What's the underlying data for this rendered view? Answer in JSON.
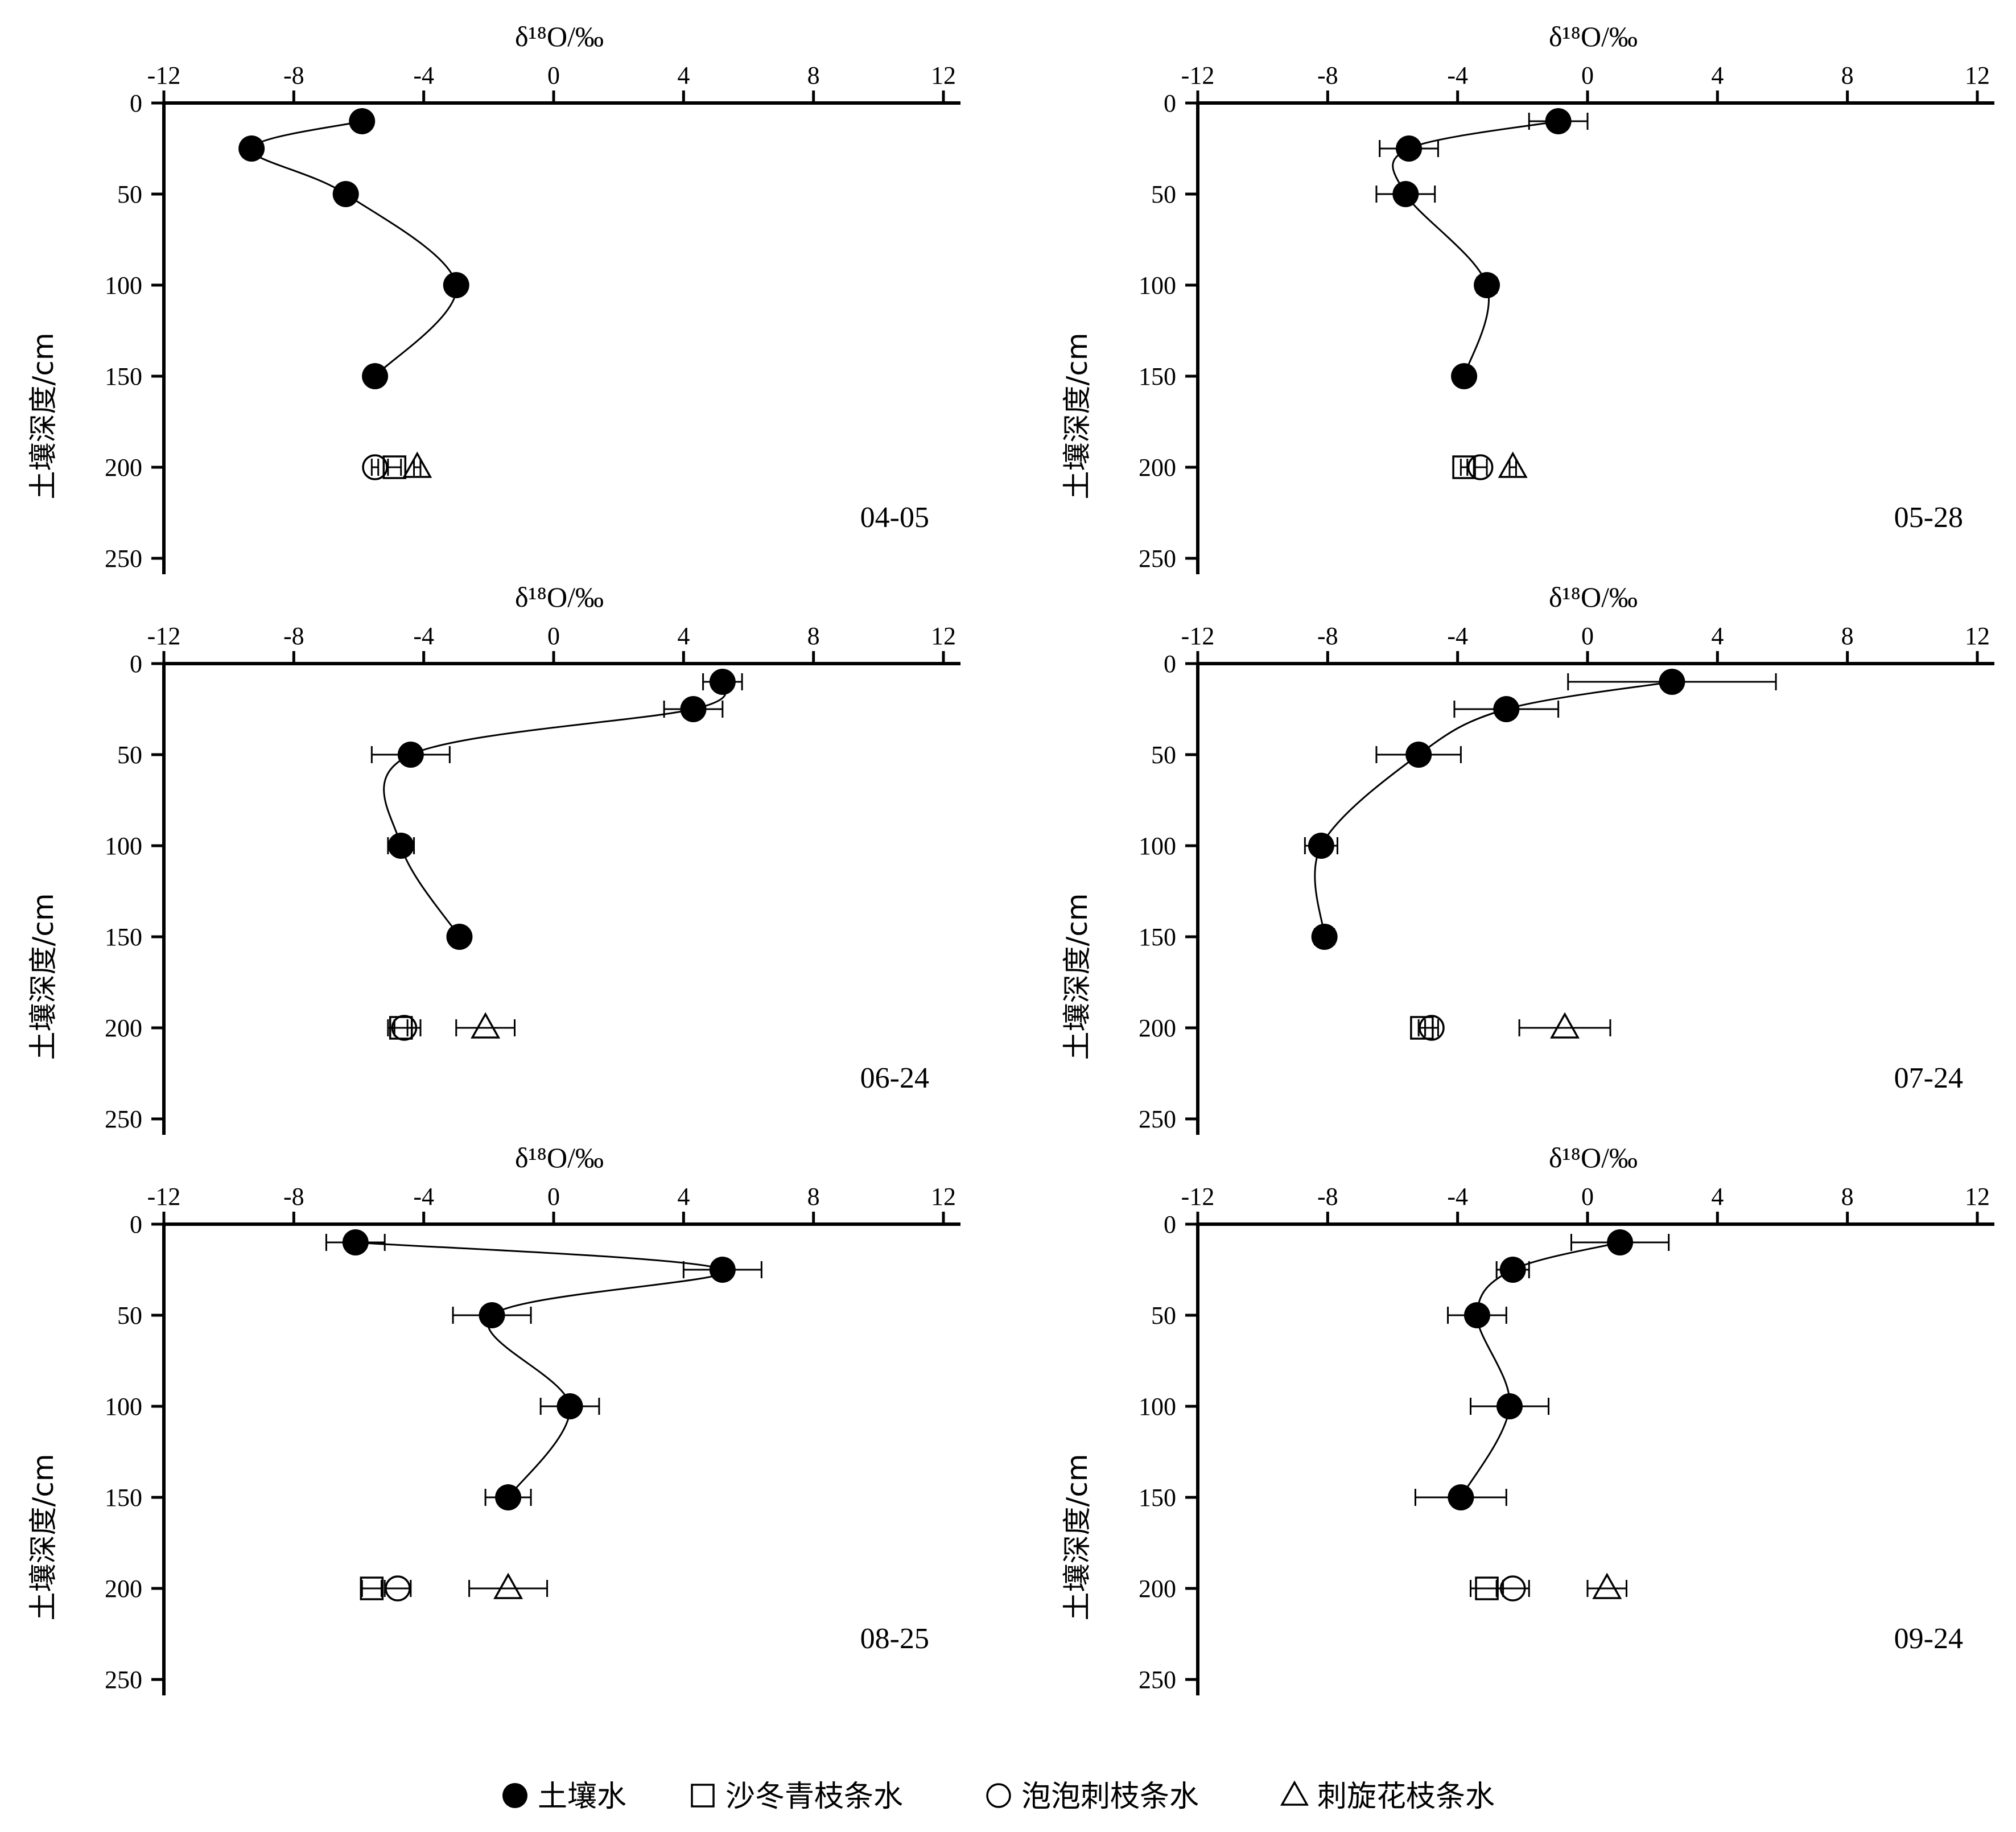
{
  "chart_data": {
    "type": "scatter",
    "xlabel": "δ¹⁸O/‰",
    "ylabel": "土壤深度/cm",
    "xlim": [
      -12,
      12
    ],
    "ylim": [
      0,
      250
    ],
    "xticks": [
      "-12",
      "-8",
      "-4",
      "0",
      "4",
      "8",
      "12"
    ],
    "yticks": [
      "0",
      "50",
      "100",
      "150",
      "200",
      "250"
    ],
    "legend_position": "bottom",
    "series": [
      {
        "name": "土壤水",
        "marker": "filled-circle"
      },
      {
        "name": "沙冬青枝条水",
        "marker": "square"
      },
      {
        "name": "泡泡刺枝条水",
        "marker": "circle"
      },
      {
        "name": "刺旋花枝条水",
        "marker": "triangle"
      }
    ],
    "panels": [
      {
        "date": "04-05",
        "soil_water": [
          {
            "depth": 10,
            "d18O": -5.9,
            "err": 0.1
          },
          {
            "depth": 25,
            "d18O": -9.3,
            "err": 0.1
          },
          {
            "depth": 50,
            "d18O": -6.4,
            "err": 0.1
          },
          {
            "depth": 100,
            "d18O": -3.0,
            "err": 0.2
          },
          {
            "depth": 150,
            "d18O": -5.5,
            "err": 0.1
          }
        ],
        "shoot_water": [
          {
            "species": "沙冬青枝条水",
            "d18O": -4.9,
            "err": 0.2
          },
          {
            "species": "泡泡刺枝条水",
            "d18O": -5.5,
            "err": 0.1
          },
          {
            "species": "刺旋花枝条水",
            "d18O": -4.2,
            "err": 0.1
          }
        ]
      },
      {
        "date": "05-28",
        "soil_water": [
          {
            "depth": 10,
            "d18O": -0.9,
            "err": 0.9
          },
          {
            "depth": 25,
            "d18O": -5.5,
            "err": 0.9
          },
          {
            "depth": 50,
            "d18O": -5.6,
            "err": 0.9
          },
          {
            "depth": 100,
            "d18O": -3.1,
            "err": 0.3
          },
          {
            "depth": 150,
            "d18O": -3.8,
            "err": 0.1
          }
        ],
        "shoot_water": [
          {
            "species": "沙冬青枝条水",
            "d18O": -3.8,
            "err": 0.1
          },
          {
            "species": "泡泡刺枝条水",
            "d18O": -3.3,
            "err": 0.2
          },
          {
            "species": "刺旋花枝条水",
            "d18O": -2.3,
            "err": 0.1
          }
        ]
      },
      {
        "date": "06-24",
        "soil_water": [
          {
            "depth": 10,
            "d18O": 5.2,
            "err": 0.6
          },
          {
            "depth": 25,
            "d18O": 4.3,
            "err": 0.9
          },
          {
            "depth": 50,
            "d18O": -4.4,
            "err": 1.2
          },
          {
            "depth": 100,
            "d18O": -4.7,
            "err": 0.4
          },
          {
            "depth": 150,
            "d18O": -2.9,
            "err": 0.2
          }
        ],
        "shoot_water": [
          {
            "species": "沙冬青枝条水",
            "d18O": -4.7,
            "err": 0.2
          },
          {
            "species": "泡泡刺枝条水",
            "d18O": -4.6,
            "err": 0.5
          },
          {
            "species": "刺旋花枝条水",
            "d18O": -2.1,
            "err": 0.9
          }
        ]
      },
      {
        "date": "07-24",
        "soil_water": [
          {
            "depth": 10,
            "d18O": 2.6,
            "err": 3.2
          },
          {
            "depth": 25,
            "d18O": -2.5,
            "err": 1.6
          },
          {
            "depth": 50,
            "d18O": -5.2,
            "err": 1.3
          },
          {
            "depth": 100,
            "d18O": -8.2,
            "err": 0.5
          },
          {
            "depth": 150,
            "d18O": -8.1,
            "err": 0.3
          }
        ],
        "shoot_water": [
          {
            "species": "沙冬青枝条水",
            "d18O": -5.1,
            "err": 0.1
          },
          {
            "species": "泡泡刺枝条水",
            "d18O": -4.8,
            "err": 0.2
          },
          {
            "species": "刺旋花枝条水",
            "d18O": -0.7,
            "err": 1.4
          }
        ]
      },
      {
        "date": "08-25",
        "soil_water": [
          {
            "depth": 10,
            "d18O": -6.1,
            "err": 0.9
          },
          {
            "depth": 25,
            "d18O": 5.2,
            "err": 1.2
          },
          {
            "depth": 50,
            "d18O": -1.9,
            "err": 1.2
          },
          {
            "depth": 100,
            "d18O": 0.5,
            "err": 0.9
          },
          {
            "depth": 150,
            "d18O": -1.4,
            "err": 0.7
          }
        ],
        "shoot_water": [
          {
            "species": "沙冬青枝条水",
            "d18O": -5.6,
            "err": 0.3
          },
          {
            "species": "泡泡刺枝条水",
            "d18O": -4.8,
            "err": 0.4
          },
          {
            "species": "刺旋花枝条水",
            "d18O": -1.4,
            "err": 1.2
          }
        ]
      },
      {
        "date": "09-24",
        "soil_water": [
          {
            "depth": 10,
            "d18O": 1.0,
            "err": 1.5
          },
          {
            "depth": 25,
            "d18O": -2.3,
            "err": 0.5
          },
          {
            "depth": 50,
            "d18O": -3.4,
            "err": 0.9
          },
          {
            "depth": 100,
            "d18O": -2.4,
            "err": 1.2
          },
          {
            "depth": 150,
            "d18O": -3.9,
            "err": 1.4
          }
        ],
        "shoot_water": [
          {
            "species": "沙冬青枝条水",
            "d18O": -3.1,
            "err": 0.5
          },
          {
            "species": "泡泡刺枝条水",
            "d18O": -2.3,
            "err": 0.5
          },
          {
            "species": "刺旋花枝条水",
            "d18O": 0.6,
            "err": 0.6
          }
        ]
      }
    ]
  }
}
